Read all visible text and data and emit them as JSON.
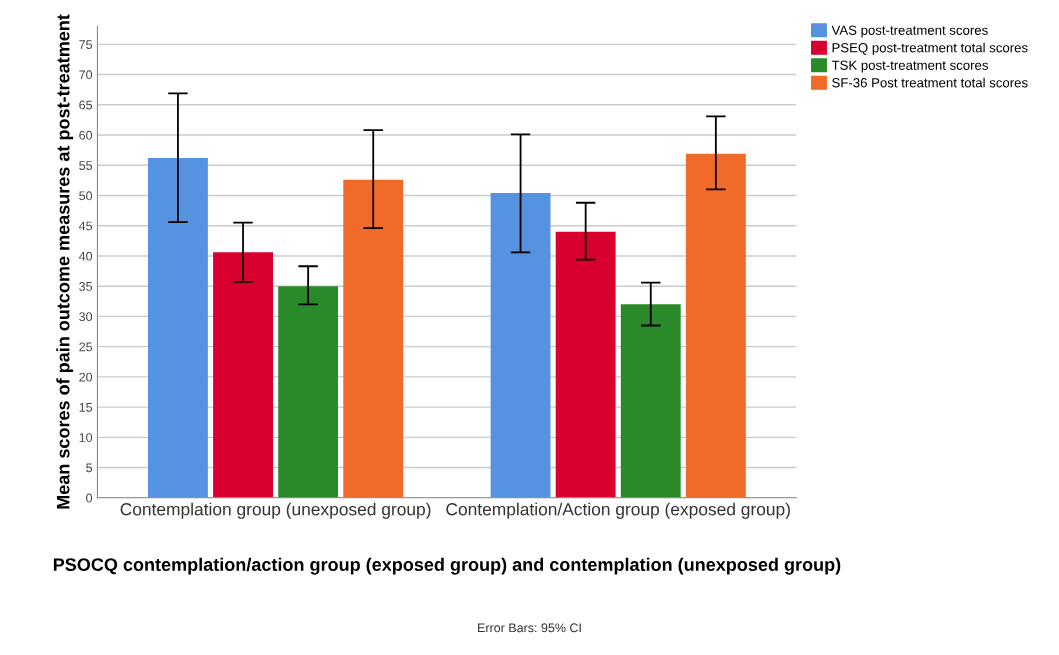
{
  "chart_data": {
    "type": "bar",
    "xlabel": "PSOCQ contemplation/action group (exposed group) and contemplation (unexposed group)",
    "ylabel": "Mean scores of pain outcome measures at post-treatment",
    "categories": [
      "Contemplation group (unexposed group)",
      "Contemplation/Action group (exposed group)"
    ],
    "series": [
      {
        "name": "VAS post-treatment scores",
        "color": "#5592e0",
        "values": [
          56.2,
          50.4
        ],
        "errors": [
          [
            45.6,
            66.9
          ],
          [
            40.6,
            60.1
          ]
        ]
      },
      {
        "name": "PSEQ post-treatment total scores",
        "color": "#d7002f",
        "values": [
          40.6,
          44.0
        ],
        "errors": [
          [
            35.7,
            45.5
          ],
          [
            39.4,
            48.8
          ]
        ]
      },
      {
        "name": "TSK post-treatment scores",
        "color": "#2a8a2a",
        "values": [
          35.0,
          32.0
        ],
        "errors": [
          [
            32.0,
            38.3
          ],
          [
            28.5,
            35.6
          ]
        ]
      },
      {
        "name": "SF-36 Post treatment total scores",
        "color": "#f06a2a",
        "values": [
          52.6,
          56.9
        ],
        "errors": [
          [
            44.6,
            60.8
          ],
          [
            51.0,
            63.1
          ]
        ]
      }
    ],
    "ylim": [
      0,
      78
    ],
    "yticks": [
      0,
      5,
      10,
      15,
      20,
      25,
      30,
      35,
      40,
      45,
      50,
      55,
      60,
      65,
      70,
      75
    ],
    "grid": "y",
    "legend": "top right",
    "annotations": [
      "Error Bars: 95% CI"
    ]
  }
}
